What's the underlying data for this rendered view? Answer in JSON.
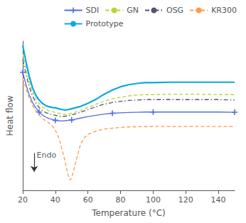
{
  "chart_data": {
    "type": "line",
    "xlabel": "Temperature (°C)",
    "ylabel": "Heat flow",
    "xlim": [
      20,
      150
    ],
    "xticks": [
      20,
      40,
      60,
      80,
      100,
      120,
      140
    ],
    "ylim": [
      -14,
      22
    ],
    "tick_labels": "x",
    "grid": false,
    "legend": "upper right",
    "series": [
      {
        "name": "SDI",
        "line_style": "solid",
        "marker": "plus",
        "x": [
          20,
          22,
          24,
          26,
          28,
          30,
          32,
          34,
          36,
          38,
          40,
          42,
          44,
          46,
          48,
          50,
          55,
          60,
          65,
          70,
          75,
          80,
          85,
          90,
          95,
          100,
          110,
          120,
          130,
          140,
          150
        ],
        "values": [
          14.5,
          11.5,
          9.0,
          7.2,
          5.9,
          4.9,
          4.2,
          3.7,
          3.35,
          3.1,
          2.9,
          2.8,
          2.75,
          2.8,
          2.9,
          3.0,
          3.4,
          3.8,
          4.1,
          4.4,
          4.6,
          4.7,
          4.8,
          4.85,
          4.9,
          4.9,
          4.9,
          4.9,
          4.9,
          4.9,
          4.85
        ]
      },
      {
        "name": "GN",
        "line_style": "dashed",
        "x": [
          20,
          22,
          24,
          26,
          28,
          30,
          32,
          34,
          36,
          38,
          40,
          42,
          44,
          46,
          48,
          50,
          55,
          60,
          65,
          70,
          75,
          80,
          85,
          90,
          95,
          100,
          110,
          120,
          130,
          140,
          150
        ],
        "values": [
          19.0,
          15.5,
          12.2,
          9.8,
          8.2,
          7.0,
          6.2,
          5.6,
          5.2,
          5.0,
          4.8,
          4.6,
          4.4,
          4.3,
          4.4,
          4.6,
          5.2,
          6.0,
          6.8,
          7.5,
          8.1,
          8.5,
          8.8,
          9.0,
          9.1,
          9.1,
          9.2,
          9.2,
          9.2,
          9.1,
          9.1
        ]
      },
      {
        "name": "OSG",
        "line_style": "dashdot",
        "x": [
          20,
          22,
          24,
          26,
          28,
          30,
          32,
          34,
          36,
          38,
          40,
          42,
          44,
          46,
          48,
          50,
          55,
          60,
          65,
          70,
          75,
          80,
          85,
          90,
          95,
          100,
          110,
          120,
          130,
          140,
          150
        ],
        "values": [
          17.5,
          14.0,
          11.0,
          8.8,
          7.2,
          6.0,
          5.3,
          4.8,
          4.5,
          4.3,
          4.1,
          3.9,
          3.8,
          3.9,
          4.0,
          4.2,
          4.8,
          5.5,
          6.2,
          6.8,
          7.2,
          7.5,
          7.7,
          7.8,
          7.9,
          7.9,
          7.9,
          7.9,
          7.9,
          7.9,
          7.8
        ]
      },
      {
        "name": "KR300",
        "line_style": "dashed",
        "x": [
          20,
          22,
          24,
          26,
          28,
          30,
          32,
          34,
          36,
          37,
          38,
          39,
          40,
          41,
          42,
          43,
          44,
          45,
          46,
          47,
          48,
          49,
          50,
          51,
          52,
          53,
          54,
          55,
          56,
          57,
          58,
          60,
          65,
          70,
          75,
          80,
          85,
          90,
          100,
          110,
          120,
          130,
          140,
          150
        ],
        "values": [
          13.0,
          10.5,
          8.2,
          6.5,
          5.2,
          4.2,
          3.4,
          2.8,
          2.3,
          2.0,
          1.6,
          1.1,
          0.5,
          -0.3,
          -1.2,
          -2.5,
          -4.0,
          -5.5,
          -7.0,
          -9.0,
          -10.5,
          -11.5,
          -11.0,
          -9.5,
          -8.0,
          -6.5,
          -5.0,
          -3.5,
          -2.5,
          -1.8,
          -1.2,
          -0.5,
          0.3,
          0.8,
          1.0,
          1.2,
          1.3,
          1.35,
          1.4,
          1.4,
          1.4,
          1.4,
          1.4,
          1.4
        ]
      },
      {
        "name": "Prototype",
        "line_style": "solid",
        "x": [
          20,
          22,
          24,
          26,
          28,
          30,
          32,
          34,
          36,
          38,
          40,
          42,
          44,
          46,
          48,
          50,
          55,
          60,
          65,
          70,
          75,
          80,
          85,
          90,
          95,
          100,
          110,
          120,
          130,
          140,
          150
        ],
        "values": [
          21.0,
          17.0,
          13.5,
          10.8,
          9.0,
          7.8,
          7.0,
          6.5,
          6.2,
          6.0,
          5.9,
          5.7,
          5.5,
          5.4,
          5.5,
          5.7,
          6.2,
          7.0,
          8.0,
          9.2,
          10.2,
          11.0,
          11.5,
          11.8,
          12.0,
          12.0,
          12.1,
          12.1,
          12.1,
          12.1,
          12.1
        ]
      }
    ],
    "annotations": [
      {
        "text": "Endo",
        "x": 28.5,
        "y": -6.5,
        "arrow_from": [
          27,
          -5.0
        ],
        "arrow_to": [
          27,
          -9.5
        ]
      }
    ]
  }
}
